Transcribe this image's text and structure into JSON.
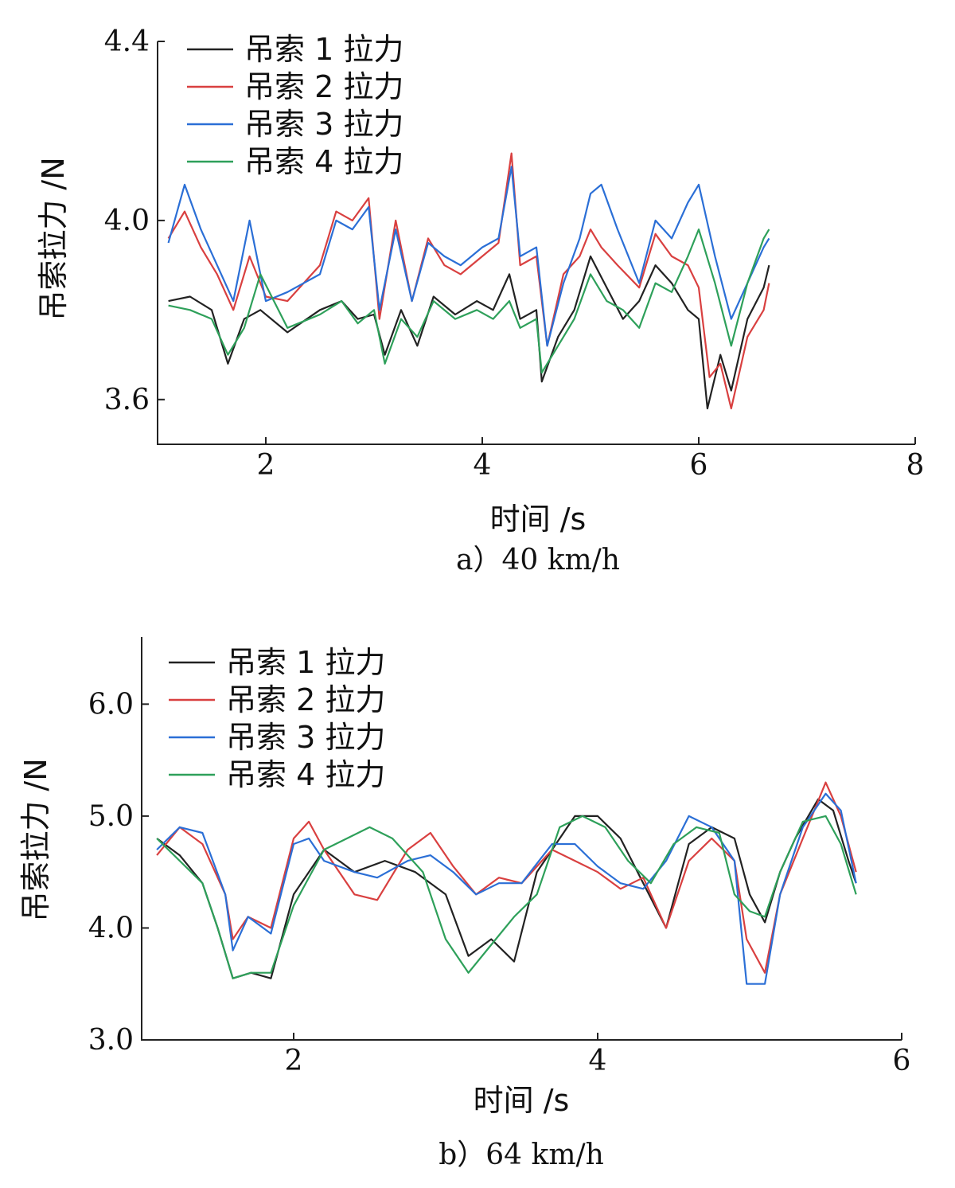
{
  "chart_data": [
    {
      "type": "line",
      "caption": "a）40 km/h",
      "xlabel": "时间 /s",
      "ylabel": "吊索拉力 /N",
      "xlim": [
        1,
        8
      ],
      "ylim": [
        3.5,
        4.4
      ],
      "xticks": [
        2,
        4,
        6,
        8
      ],
      "yticks": [
        3.6,
        4.0,
        4.4
      ],
      "ytick_labels": [
        "3.6",
        "4.0",
        "4.4"
      ],
      "legend_position": "top-left",
      "series": [
        {
          "name": "吊索 1 拉力",
          "color": "#222222",
          "x": [
            1.1,
            1.3,
            1.5,
            1.65,
            1.8,
            1.95,
            2.2,
            2.5,
            2.7,
            2.85,
            3.0,
            3.1,
            3.25,
            3.4,
            3.55,
            3.75,
            3.95,
            4.1,
            4.25,
            4.35,
            4.5,
            4.55,
            4.7,
            4.85,
            5.0,
            5.15,
            5.3,
            5.45,
            5.6,
            5.75,
            5.9,
            6.0,
            6.08,
            6.2,
            6.3,
            6.45,
            6.6,
            6.65
          ],
          "values": [
            3.82,
            3.83,
            3.8,
            3.68,
            3.78,
            3.8,
            3.75,
            3.8,
            3.82,
            3.78,
            3.79,
            3.7,
            3.8,
            3.72,
            3.83,
            3.79,
            3.82,
            3.8,
            3.88,
            3.78,
            3.8,
            3.64,
            3.74,
            3.8,
            3.92,
            3.85,
            3.78,
            3.82,
            3.9,
            3.86,
            3.8,
            3.78,
            3.58,
            3.7,
            3.62,
            3.78,
            3.85,
            3.9
          ]
        },
        {
          "name": "吊索 2 拉力",
          "color": "#d94040",
          "x": [
            1.1,
            1.25,
            1.4,
            1.55,
            1.7,
            1.85,
            2.0,
            2.2,
            2.5,
            2.65,
            2.8,
            2.95,
            3.05,
            3.2,
            3.35,
            3.5,
            3.65,
            3.8,
            4.0,
            4.15,
            4.27,
            4.35,
            4.5,
            4.6,
            4.75,
            4.9,
            5.0,
            5.1,
            5.25,
            5.45,
            5.6,
            5.75,
            5.9,
            6.0,
            6.1,
            6.2,
            6.3,
            6.45,
            6.6,
            6.65
          ],
          "values": [
            3.96,
            4.02,
            3.94,
            3.88,
            3.8,
            3.92,
            3.83,
            3.82,
            3.9,
            4.02,
            4.0,
            4.05,
            3.78,
            4.0,
            3.82,
            3.96,
            3.9,
            3.88,
            3.92,
            3.95,
            4.15,
            3.9,
            3.92,
            3.72,
            3.88,
            3.92,
            3.98,
            3.94,
            3.9,
            3.85,
            3.97,
            3.92,
            3.9,
            3.85,
            3.65,
            3.68,
            3.58,
            3.74,
            3.8,
            3.86
          ]
        },
        {
          "name": "吊索 3 拉力",
          "color": "#2b6fd6",
          "x": [
            1.1,
            1.25,
            1.4,
            1.55,
            1.7,
            1.85,
            2.0,
            2.2,
            2.5,
            2.65,
            2.8,
            2.95,
            3.05,
            3.2,
            3.35,
            3.5,
            3.65,
            3.8,
            4.0,
            4.15,
            4.27,
            4.35,
            4.5,
            4.6,
            4.75,
            4.9,
            5.0,
            5.1,
            5.25,
            5.45,
            5.6,
            5.75,
            5.9,
            6.0,
            6.15,
            6.3,
            6.45,
            6.6,
            6.65
          ],
          "values": [
            3.95,
            4.08,
            3.98,
            3.9,
            3.82,
            4.0,
            3.82,
            3.84,
            3.88,
            4.0,
            3.98,
            4.03,
            3.8,
            3.98,
            3.82,
            3.95,
            3.92,
            3.9,
            3.94,
            3.96,
            4.12,
            3.92,
            3.94,
            3.72,
            3.86,
            3.96,
            4.06,
            4.08,
            3.98,
            3.86,
            4.0,
            3.96,
            4.04,
            4.08,
            3.92,
            3.78,
            3.86,
            3.94,
            3.96
          ]
        },
        {
          "name": "吊索 4 拉力",
          "color": "#2ea05a",
          "x": [
            1.1,
            1.3,
            1.5,
            1.65,
            1.8,
            1.95,
            2.2,
            2.5,
            2.7,
            2.85,
            3.0,
            3.1,
            3.25,
            3.4,
            3.55,
            3.75,
            3.95,
            4.1,
            4.25,
            4.35,
            4.5,
            4.55,
            4.7,
            4.85,
            5.0,
            5.15,
            5.3,
            5.45,
            5.6,
            5.75,
            5.9,
            6.0,
            6.15,
            6.3,
            6.45,
            6.6,
            6.65
          ],
          "values": [
            3.81,
            3.8,
            3.78,
            3.7,
            3.76,
            3.88,
            3.76,
            3.79,
            3.82,
            3.77,
            3.8,
            3.68,
            3.78,
            3.74,
            3.82,
            3.78,
            3.8,
            3.78,
            3.82,
            3.76,
            3.78,
            3.66,
            3.72,
            3.78,
            3.88,
            3.82,
            3.8,
            3.76,
            3.86,
            3.84,
            3.92,
            3.98,
            3.86,
            3.72,
            3.86,
            3.96,
            3.98
          ]
        }
      ]
    },
    {
      "type": "line",
      "caption": "b）64 km/h",
      "xlabel": "时间 /s",
      "ylabel": "吊索拉力 /N",
      "xlim": [
        1,
        6
      ],
      "ylim": [
        3.0,
        6.6
      ],
      "xticks": [
        2,
        4,
        6
      ],
      "yticks": [
        3.0,
        4.0,
        5.0,
        6.0
      ],
      "ytick_labels": [
        "3.0",
        "4.0",
        "5.0",
        "6.0"
      ],
      "legend_position": "top-left",
      "series": [
        {
          "name": "吊索 1 拉力",
          "color": "#222222",
          "x": [
            1.1,
            1.25,
            1.4,
            1.5,
            1.6,
            1.72,
            1.85,
            2.0,
            2.2,
            2.4,
            2.6,
            2.8,
            3.0,
            3.15,
            3.3,
            3.45,
            3.6,
            3.75,
            3.85,
            4.0,
            4.15,
            4.3,
            4.45,
            4.6,
            4.75,
            4.9,
            5.0,
            5.1,
            5.2,
            5.3,
            5.45,
            5.55,
            5.65,
            5.7
          ],
          "values": [
            4.8,
            4.65,
            4.4,
            4.0,
            3.55,
            3.6,
            3.55,
            4.3,
            4.7,
            4.5,
            4.6,
            4.5,
            4.3,
            3.75,
            3.9,
            3.7,
            4.5,
            4.8,
            5.0,
            5.0,
            4.8,
            4.4,
            4.0,
            4.75,
            4.9,
            4.8,
            4.3,
            4.05,
            4.5,
            4.8,
            5.15,
            5.05,
            4.6,
            4.4
          ]
        },
        {
          "name": "吊索 2 拉力",
          "color": "#d94040",
          "x": [
            1.1,
            1.25,
            1.4,
            1.55,
            1.6,
            1.7,
            1.85,
            2.0,
            2.1,
            2.2,
            2.4,
            2.55,
            2.75,
            2.9,
            3.05,
            3.2,
            3.35,
            3.5,
            3.7,
            3.85,
            4.0,
            4.15,
            4.3,
            4.45,
            4.6,
            4.75,
            4.9,
            4.98,
            5.1,
            5.2,
            5.35,
            5.5,
            5.6,
            5.7
          ],
          "values": [
            4.65,
            4.9,
            4.75,
            4.3,
            3.9,
            4.1,
            4.0,
            4.8,
            4.95,
            4.7,
            4.3,
            4.25,
            4.7,
            4.85,
            4.55,
            4.3,
            4.45,
            4.4,
            4.7,
            4.6,
            4.5,
            4.35,
            4.45,
            4.0,
            4.6,
            4.8,
            4.6,
            3.9,
            3.6,
            4.3,
            4.8,
            5.3,
            5.0,
            4.5
          ]
        },
        {
          "name": "吊索 3 拉力",
          "color": "#2b6fd6",
          "x": [
            1.1,
            1.25,
            1.4,
            1.55,
            1.6,
            1.7,
            1.85,
            2.0,
            2.1,
            2.2,
            2.4,
            2.55,
            2.75,
            2.9,
            3.05,
            3.2,
            3.35,
            3.5,
            3.7,
            3.85,
            4.0,
            4.15,
            4.3,
            4.45,
            4.6,
            4.75,
            4.9,
            4.98,
            5.1,
            5.2,
            5.35,
            5.5,
            5.6,
            5.7
          ],
          "values": [
            4.7,
            4.9,
            4.85,
            4.3,
            3.8,
            4.1,
            3.95,
            4.75,
            4.8,
            4.6,
            4.5,
            4.45,
            4.6,
            4.65,
            4.5,
            4.3,
            4.4,
            4.4,
            4.75,
            4.75,
            4.55,
            4.4,
            4.35,
            4.6,
            5.0,
            4.9,
            4.6,
            3.5,
            3.5,
            4.3,
            4.9,
            5.2,
            5.05,
            4.4
          ]
        },
        {
          "name": "吊索 4 拉力",
          "color": "#2ea05a",
          "x": [
            1.1,
            1.25,
            1.4,
            1.5,
            1.6,
            1.72,
            1.85,
            2.0,
            2.2,
            2.35,
            2.5,
            2.65,
            2.85,
            3.0,
            3.15,
            3.3,
            3.45,
            3.6,
            3.75,
            3.9,
            4.05,
            4.2,
            4.35,
            4.5,
            4.65,
            4.8,
            4.9,
            5.0,
            5.1,
            5.2,
            5.35,
            5.5,
            5.6,
            5.7
          ],
          "values": [
            4.8,
            4.6,
            4.4,
            4.0,
            3.55,
            3.6,
            3.6,
            4.2,
            4.7,
            4.8,
            4.9,
            4.8,
            4.5,
            3.9,
            3.6,
            3.85,
            4.1,
            4.3,
            4.9,
            5.0,
            4.9,
            4.6,
            4.4,
            4.75,
            4.9,
            4.85,
            4.3,
            4.15,
            4.1,
            4.5,
            4.95,
            5.0,
            4.75,
            4.3
          ]
        }
      ]
    }
  ]
}
